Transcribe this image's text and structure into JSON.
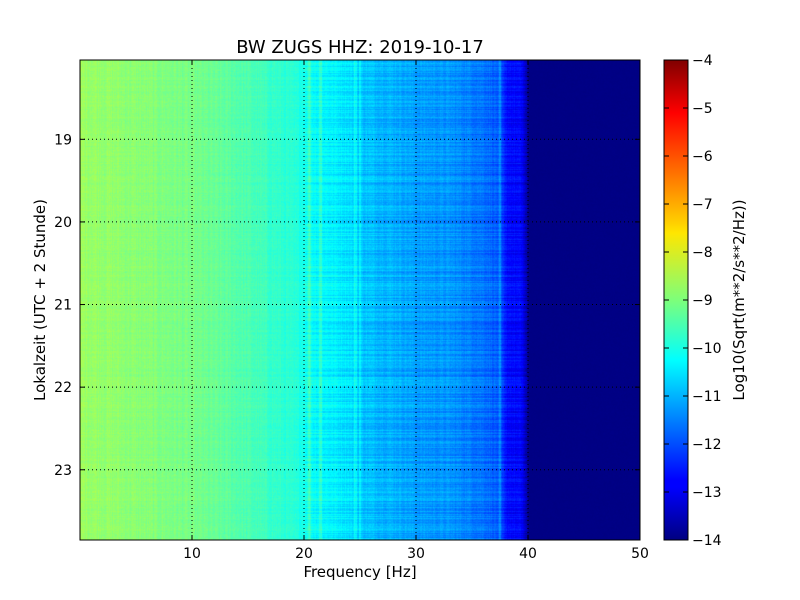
{
  "chart_data": {
    "type": "heatmap",
    "title": "BW ZUGS HHZ: 2019-10-17",
    "xlabel": "Frequency [Hz]",
    "ylabel": "Lokalzeit (UTC + 2 Stunde)",
    "xlim": [
      0,
      50
    ],
    "ylim": [
      18.04,
      23.85
    ],
    "y_inverted": true,
    "x_ticks": [
      10,
      20,
      30,
      40,
      50
    ],
    "y_ticks": [
      19,
      20,
      21,
      22,
      23
    ],
    "grid": true,
    "colormap": "jet",
    "colorbar": {
      "label": "Log10(Sqrt(m**2/s**2/Hz))",
      "range": [
        -14,
        -4
      ],
      "ticks": [
        -4,
        -5,
        -6,
        -7,
        -8,
        -9,
        -10,
        -11,
        -12,
        -13,
        -14
      ]
    },
    "spectrum_profile": {
      "frequency_hz": [
        0,
        5,
        10,
        14,
        18,
        20,
        21,
        22,
        24,
        25,
        28,
        30,
        33,
        36,
        37.5,
        38,
        39.5,
        40,
        45,
        50
      ],
      "level": [
        -8.7,
        -8.9,
        -9.1,
        -9.4,
        -9.8,
        -10.0,
        -10.2,
        -10.3,
        -10.5,
        -10.8,
        -11.0,
        -11.2,
        -11.3,
        -11.6,
        -11.9,
        -12.6,
        -12.8,
        -13.9,
        -14.0,
        -14.0
      ]
    },
    "line_features_hz": [
      20.5,
      21.5,
      24.6,
      25.0,
      37.5
    ]
  }
}
